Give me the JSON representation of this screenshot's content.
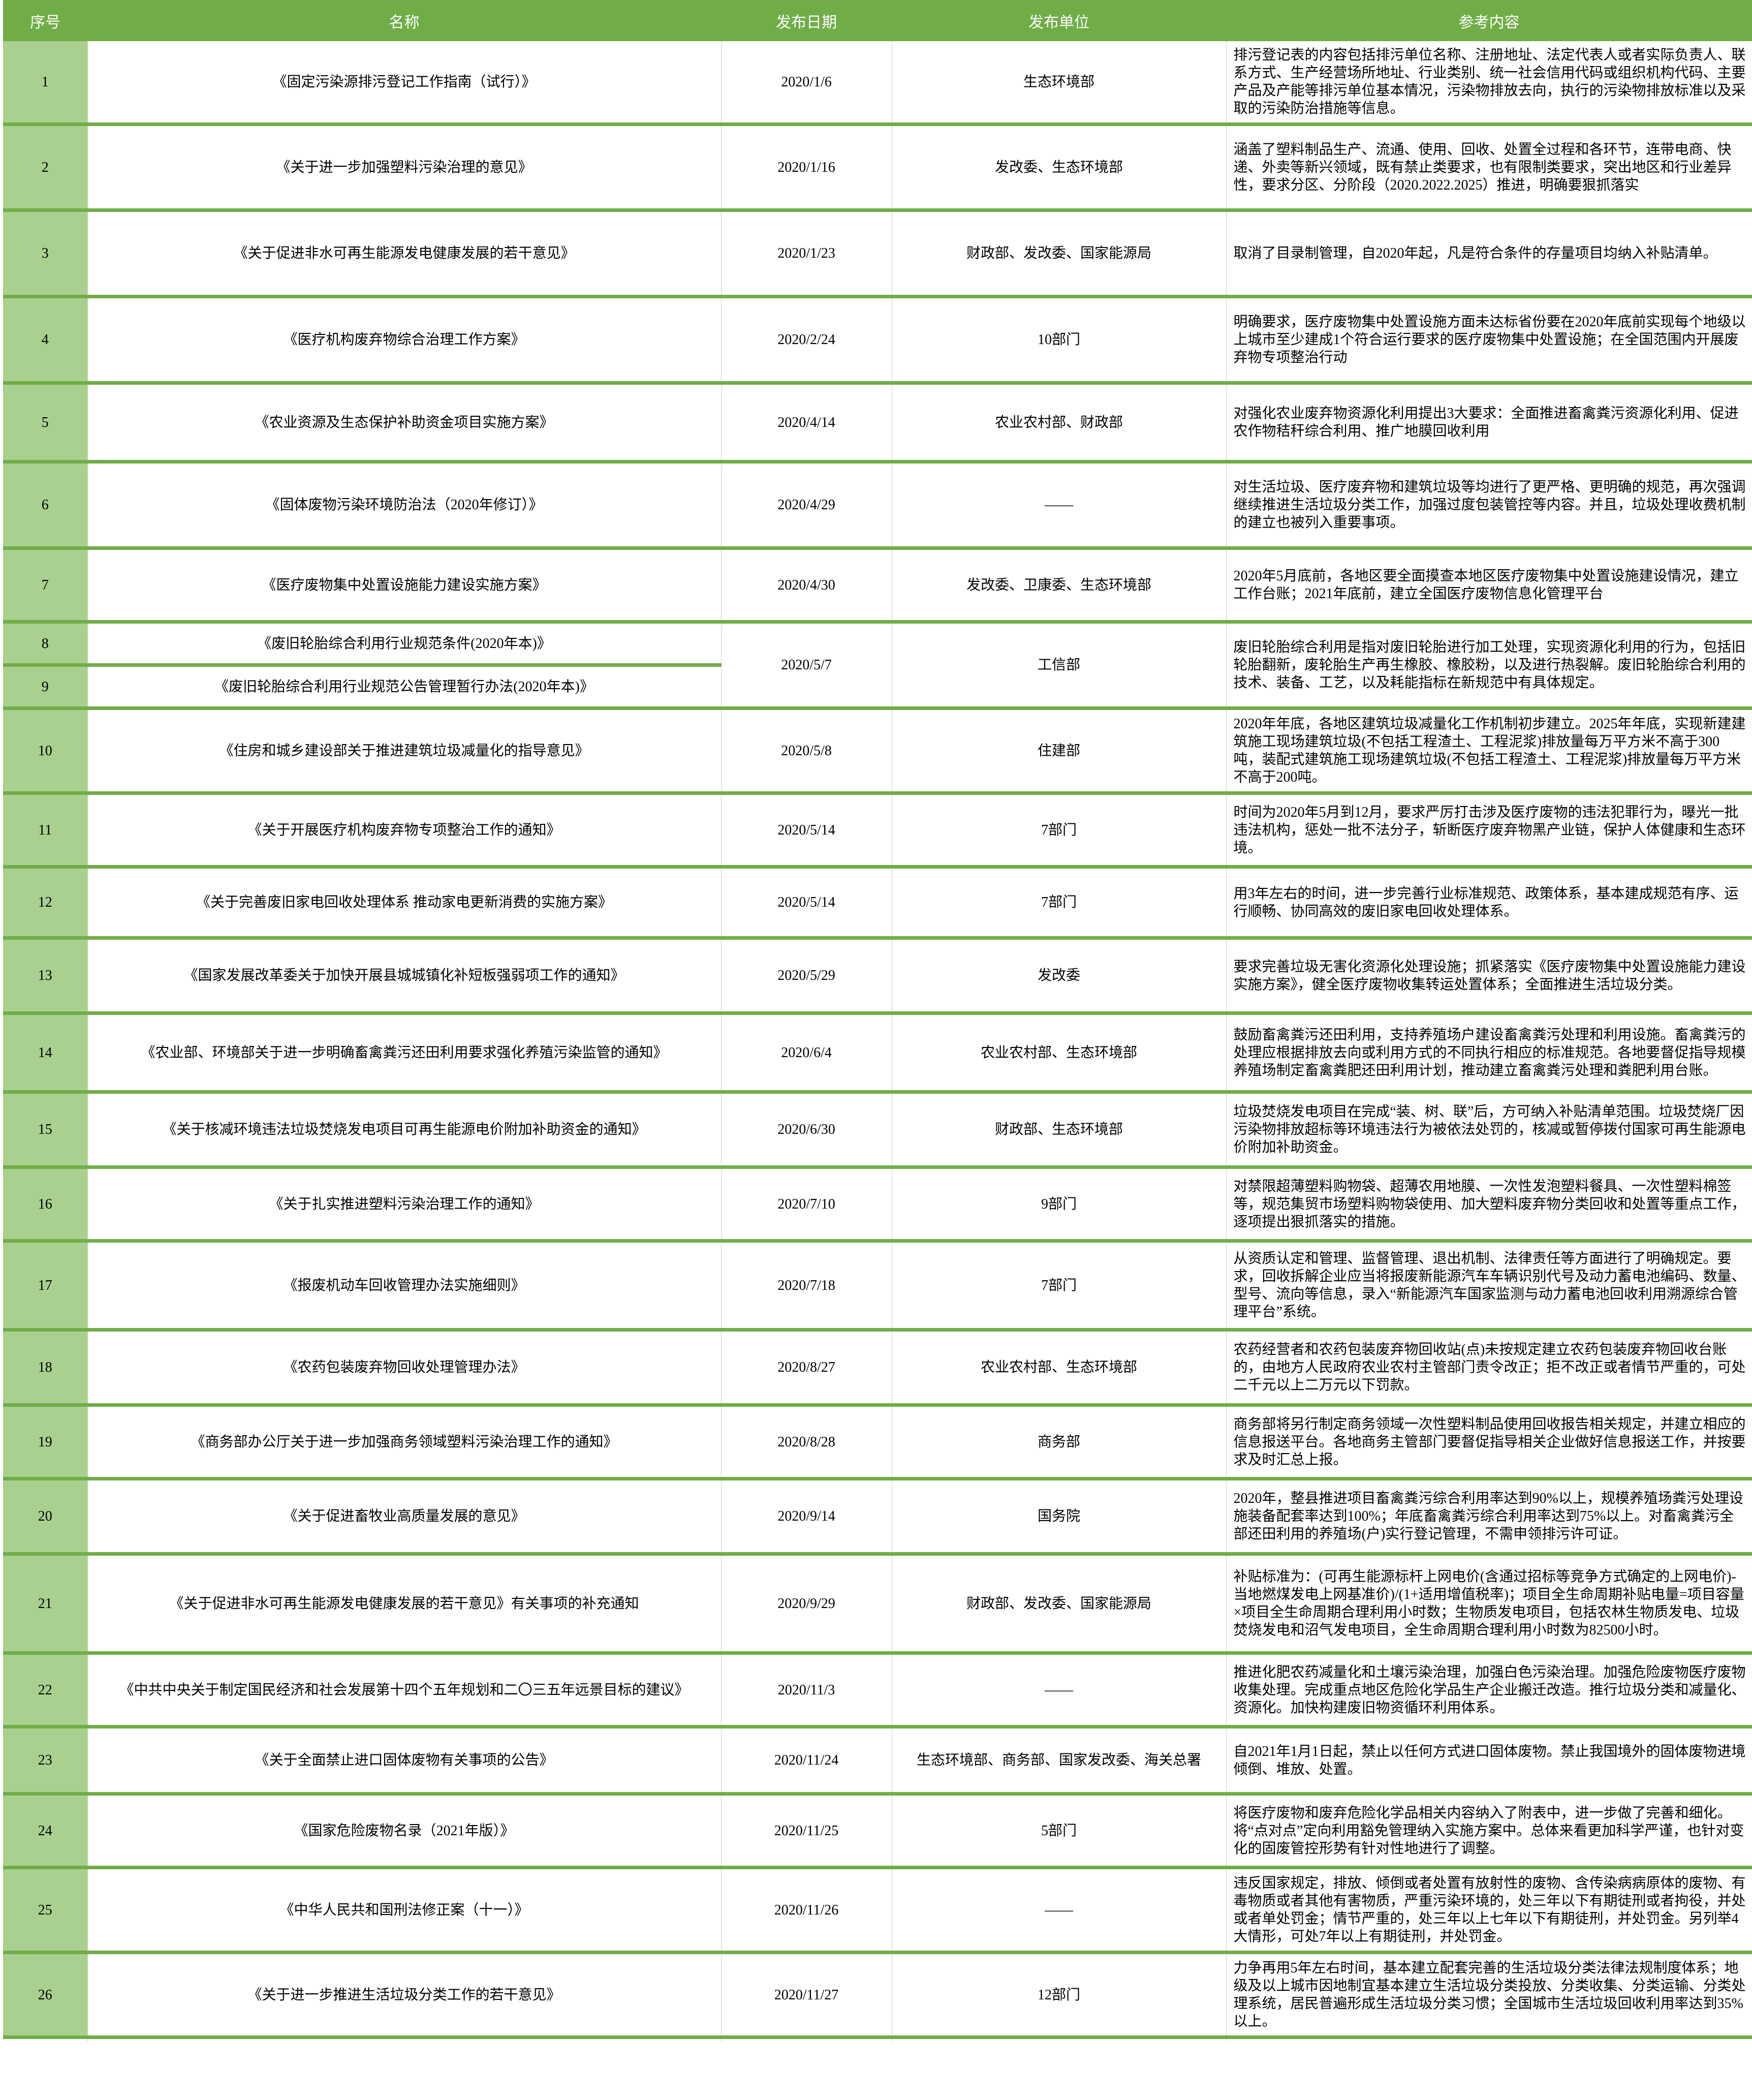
{
  "table": {
    "columns": [
      "序号",
      "名称",
      "发布日期",
      "发布单位",
      "参考内容"
    ],
    "rows": [
      {
        "no": "1",
        "name": "《固定污染源排污登记工作指南（试行）》",
        "date": "2020/1/6",
        "unit": "生态环境部",
        "content": "排污登记表的内容包括排污单位名称、注册地址、法定代表人或者实际负责人、联系方式、生产经营场所地址、行业类别、统一社会信用代码或组织机构代码、主要产品及产能等排污单位基本情况，污染物排放去向，执行的污染物排放标准以及采取的污染防治措施等信息。"
      },
      {
        "no": "2",
        "name": "《关于进一步加强塑料污染治理的意见》",
        "date": "2020/1/16",
        "unit": "发改委、生态环境部",
        "content": "涵盖了塑料制品生产、流通、使用、回收、处置全过程和各环节，连带电商、快递、外卖等新兴领域，既有禁止类要求，也有限制类要求，突出地区和行业差异性，要求分区、分阶段（2020.2022.2025）推进，明确要狠抓落实"
      },
      {
        "no": "3",
        "name": "《关于促进非水可再生能源发电健康发展的若干意见》",
        "date": "2020/1/23",
        "unit": "财政部、发改委、国家能源局",
        "content": "取消了目录制管理，自2020年起，凡是符合条件的存量项目均纳入补贴清单。"
      },
      {
        "no": "4",
        "name": "《医疗机构废弃物综合治理工作方案》",
        "date": "2020/2/24",
        "unit": "10部门",
        "content": "明确要求，医疗废物集中处置设施方面未达标省份要在2020年底前实现每个地级以上城市至少建成1个符合运行要求的医疗废物集中处置设施；在全国范围内开展废弃物专项整治行动"
      },
      {
        "no": "5",
        "name": "《农业资源及生态保护补助资金项目实施方案》",
        "date": "2020/4/14",
        "unit": "农业农村部、财政部",
        "content": "对强化农业废弃物资源化利用提出3大要求：全面推进畜禽粪污资源化利用、促进农作物秸秆综合利用、推广地膜回收利用"
      },
      {
        "no": "6",
        "name": "《固体废物污染环境防治法（2020年修订）》",
        "date": "2020/4/29",
        "unit": "——",
        "content": "对生活垃圾、医疗废弃物和建筑垃圾等均进行了更严格、更明确的规范，再次强调继续推进生活垃圾分类工作，加强过度包装管控等内容。并且，垃圾处理收费机制的建立也被列入重要事项。"
      },
      {
        "no": "7",
        "name": "《医疗废物集中处置设施能力建设实施方案》",
        "date": "2020/4/30",
        "unit": "发改委、卫康委、生态环境部",
        "content": "2020年5月底前，各地区要全面摸查本地区医疗废物集中处置设施建设情况，建立工作台账；2021年底前，建立全国医疗废物信息化管理平台"
      },
      {
        "no": "8",
        "name": "《废旧轮胎综合利用行业规范条件(2020年本)》",
        "date": "2020/5/7",
        "unit": "工信部",
        "content": "废旧轮胎综合利用是指对废旧轮胎进行加工处理，实现资源化利用的行为，包括旧轮胎翻新，废轮胎生产再生橡胶、橡胶粉，以及进行热裂解。废旧轮胎综合利用的技术、装备、工艺，以及耗能指标在新规范中有具体规定。"
      },
      {
        "no": "9",
        "name": "《废旧轮胎综合利用行业规范公告管理暂行办法(2020年本)》",
        "date": "",
        "unit": "",
        "content": ""
      },
      {
        "no": "10",
        "name": "《住房和城乡建设部关于推进建筑垃圾减量化的指导意见》",
        "date": "2020/5/8",
        "unit": "住建部",
        "content": "2020年年底，各地区建筑垃圾减量化工作机制初步建立。2025年年底，实现新建建筑施工现场建筑垃圾(不包括工程渣土、工程泥浆)排放量每万平方米不高于300吨，装配式建筑施工现场建筑垃圾(不包括工程渣土、工程泥浆)排放量每万平方米不高于200吨。"
      },
      {
        "no": "11",
        "name": "《关于开展医疗机构废弃物专项整治工作的通知》",
        "date": "2020/5/14",
        "unit": "7部门",
        "content": "时间为2020年5月到12月，要求严厉打击涉及医疗废物的违法犯罪行为，曝光一批违法机构，惩处一批不法分子，斩断医疗废弃物黑产业链，保护人体健康和生态环境。"
      },
      {
        "no": "12",
        "name": "《关于完善废旧家电回收处理体系 推动家电更新消费的实施方案》",
        "date": "2020/5/14",
        "unit": "7部门",
        "content": "用3年左右的时间，进一步完善行业标准规范、政策体系，基本建成规范有序、运行顺畅、协同高效的废旧家电回收处理体系。"
      },
      {
        "no": "13",
        "name": "《国家发展改革委关于加快开展县城城镇化补短板强弱项工作的通知》",
        "date": "2020/5/29",
        "unit": "发改委",
        "content": "要求完善垃圾无害化资源化处理设施；抓紧落实《医疗废物集中处置设施能力建设实施方案》，健全医疗废物收集转运处置体系；全面推进生活垃圾分类。"
      },
      {
        "no": "14",
        "name": "《农业部、环境部关于进一步明确畜禽粪污还田利用要求强化养殖污染监管的通知》",
        "date": "2020/6/4",
        "unit": "农业农村部、生态环境部",
        "content": "鼓励畜禽粪污还田利用，支持养殖场户建设畜禽粪污处理和利用设施。畜禽粪污的处理应根据排放去向或利用方式的不同执行相应的标准规范。各地要督促指导规模养殖场制定畜禽粪肥还田利用计划，推动建立畜禽粪污处理和粪肥利用台账。"
      },
      {
        "no": "15",
        "name": "《关于核减环境违法垃圾焚烧发电项目可再生能源电价附加补助资金的通知》",
        "date": "2020/6/30",
        "unit": "财政部、生态环境部",
        "content": "垃圾焚烧发电项目在完成“装、树、联”后，方可纳入补贴清单范围。垃圾焚烧厂因污染物排放超标等环境违法行为被依法处罚的，核减或暂停拨付国家可再生能源电价附加补助资金。"
      },
      {
        "no": "16",
        "name": "《关于扎实推进塑料污染治理工作的通知》",
        "date": "2020/7/10",
        "unit": "9部门",
        "content": "对禁限超薄塑料购物袋、超薄农用地膜、一次性发泡塑料餐具、一次性塑料棉签等，规范集贸市场塑料购物袋使用、加大塑料废弃物分类回收和处置等重点工作，逐项提出狠抓落实的措施。"
      },
      {
        "no": "17",
        "name": "《报废机动车回收管理办法实施细则》",
        "date": "2020/7/18",
        "unit": "7部门",
        "content": "从资质认定和管理、监督管理、退出机制、法律责任等方面进行了明确规定。要求，回收拆解企业应当将报废新能源汽车车辆识别代号及动力蓄电池编码、数量、型号、流向等信息，录入“新能源汽车国家监测与动力蓄电池回收利用溯源综合管理平台”系统。"
      },
      {
        "no": "18",
        "name": "《农药包装废弃物回收处理管理办法》",
        "date": "2020/8/27",
        "unit": "农业农村部、生态环境部",
        "content": "农药经营者和农药包装废弃物回收站(点)未按规定建立农药包装废弃物回收台账的，由地方人民政府农业农村主管部门责令改正；拒不改正或者情节严重的，可处二千元以上二万元以下罚款。"
      },
      {
        "no": "19",
        "name": "《商务部办公厅关于进一步加强商务领域塑料污染治理工作的通知》",
        "date": "2020/8/28",
        "unit": "商务部",
        "content": "商务部将另行制定商务领域一次性塑料制品使用回收报告相关规定，并建立相应的信息报送平台。各地商务主管部门要督促指导相关企业做好信息报送工作，并按要求及时汇总上报。"
      },
      {
        "no": "20",
        "name": "《关于促进畜牧业高质量发展的意见》",
        "date": "2020/9/14",
        "unit": "国务院",
        "content": "2020年，整县推进项目畜禽粪污综合利用率达到90%以上，规模养殖场粪污处理设施装备配套率达到100%；年底畜禽粪污综合利用率达到75%以上。对畜禽粪污全部还田利用的养殖场(户)实行登记管理，不需申领排污许可证。"
      },
      {
        "no": "21",
        "name": "《关于促进非水可再生能源发电健康发展的若干意见》有关事项的补充通知",
        "date": "2020/9/29",
        "unit": "财政部、发改委、国家能源局",
        "content": "补贴标准为：(可再生能源标杆上网电价(含通过招标等竞争方式确定的上网电价)-当地燃煤发电上网基准价)/(1+适用增值税率)；项目全生命周期补贴电量=项目容量×项目全生命周期合理利用小时数；生物质发电项目，包括农林生物质发电、垃圾焚烧发电和沼气发电项目，全生命周期合理利用小时数为82500小时。"
      },
      {
        "no": "22",
        "name": "《中共中央关于制定国民经济和社会发展第十四个五年规划和二〇三五年远景目标的建议》",
        "date": "2020/11/3",
        "unit": "——",
        "content": "推进化肥农药减量化和土壤污染治理，加强白色污染治理。加强危险废物医疗废物收集处理。完成重点地区危险化学品生产企业搬迁改造。推行垃圾分类和减量化、资源化。加快构建废旧物资循环利用体系。"
      },
      {
        "no": "23",
        "name": "《关于全面禁止进口固体废物有关事项的公告》",
        "date": "2020/11/24",
        "unit": "生态环境部、商务部、国家发改委、海关总署",
        "content": "自2021年1月1日起，禁止以任何方式进口固体废物。禁止我国境外的固体废物进境倾倒、堆放、处置。"
      },
      {
        "no": "24",
        "name": "《国家危险废物名录（2021年版）》",
        "date": "2020/11/25",
        "unit": "5部门",
        "content": "将医疗废物和废弃危险化学品相关内容纳入了附表中，进一步做了完善和细化。将“点对点”定向利用豁免管理纳入实施方案中。总体来看更加科学严谨，也针对变化的固废管控形势有针对性地进行了调整。"
      },
      {
        "no": "25",
        "name": "《中华人民共和国刑法修正案（十一）》",
        "date": "2020/11/26",
        "unit": "——",
        "content": "违反国家规定，排放、倾倒或者处置有放射性的废物、含传染病病原体的废物、有毒物质或者其他有害物质，严重污染环境的，处三年以下有期徒刑或者拘役，并处或者单处罚金；情节严重的，处三年以上七年以下有期徒刑，并处罚金。另列举4大情形，可处7年以上有期徒刑，并处罚金。"
      },
      {
        "no": "26",
        "name": "《关于进一步推进生活垃圾分类工作的若干意见》",
        "date": "2020/11/27",
        "unit": "12部门",
        "content": "力争再用5年左右时间，基本建立配套完善的生活垃圾分类法律法规制度体系；地级及以上城市因地制宜基本建立生活垃圾分类投放、分类收集、分类运输、分类处理系统，居民普遍形成生活垃圾分类习惯；全国城市生活垃圾回收利用率达到35%以上。"
      }
    ]
  },
  "colors": {
    "header_green": "#70AD47",
    "row_band_green": "#A9D08E",
    "separator_green": "#70AD47",
    "gridline_gray": "#D0CECE"
  }
}
